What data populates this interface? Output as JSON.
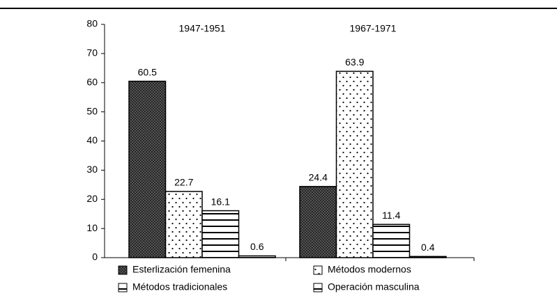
{
  "chart_data": {
    "type": "bar",
    "categories": [
      "1947-1951",
      "1967-1971"
    ],
    "series": [
      {
        "name": "Esterlización femenina",
        "color": "#000000",
        "pattern": "crosshatch",
        "values": [
          60.5,
          24.4
        ]
      },
      {
        "name": "Métodos modernos",
        "color": "#000000",
        "pattern": "dots",
        "values": [
          22.7,
          63.9
        ]
      },
      {
        "name": "Métodos tradicionales",
        "color": "#000000",
        "pattern": "hlines",
        "values": [
          16.1,
          11.4
        ]
      },
      {
        "name": "Operación masculina",
        "color": "#000000",
        "pattern": "hlines",
        "values": [
          0.6,
          0.4
        ]
      }
    ],
    "ylim": [
      0,
      80
    ],
    "yticks": [
      0,
      10,
      20,
      30,
      40,
      50,
      60,
      70,
      80
    ],
    "grid": false,
    "legend": "bottom"
  }
}
